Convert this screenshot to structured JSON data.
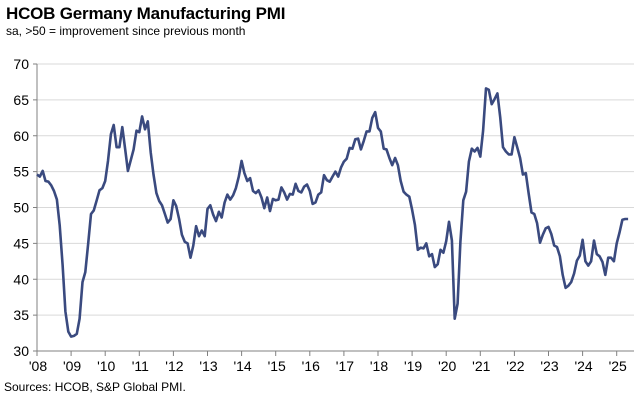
{
  "chart_data": {
    "type": "line",
    "title": "HCOB Germany Manufacturing PMI",
    "subtitle": "sa, >50 = improvement since previous month",
    "source": "Sources: HCOB, S&P Global PMI.",
    "xlabel": "",
    "ylabel": "",
    "ylim": [
      30,
      70
    ],
    "yticks": [
      "30",
      "35",
      "40",
      "45",
      "50",
      "55",
      "60",
      "65",
      "70"
    ],
    "xticks": [
      "'08",
      "'09",
      "'10",
      "'11",
      "'12",
      "'13",
      "'14",
      "'15",
      "'16",
      "'17",
      "'18",
      "'19",
      "'20",
      "'21",
      "'22",
      "'23",
      "'24",
      "'25"
    ],
    "x_start": "2008-01",
    "x_frequency": "monthly",
    "grid": "horizontal",
    "line_color": "#3a4a7f",
    "series": [
      {
        "values": [
          54.6,
          54.3,
          55.1,
          53.7,
          53.6,
          53.1,
          52.3,
          51.1,
          47.5,
          42.0,
          35.5,
          32.7,
          32.0,
          32.1,
          32.4,
          34.5,
          39.6,
          41.0,
          45.0,
          49.1,
          49.6,
          51.0,
          52.4,
          52.7,
          53.7,
          56.5,
          60.2,
          61.5,
          58.4,
          58.4,
          61.2,
          58.2,
          55.1,
          56.6,
          58.1,
          60.7,
          60.5,
          62.7,
          60.9,
          62.0,
          57.7,
          54.6,
          52.0,
          50.9,
          50.3,
          49.1,
          47.9,
          48.4,
          51.0,
          50.2,
          48.4,
          46.2,
          45.2,
          45.0,
          43.0,
          44.7,
          47.4,
          46.0,
          46.8,
          46.0,
          49.8,
          50.3,
          49.0,
          48.1,
          49.4,
          48.6,
          50.7,
          51.8,
          51.1,
          51.7,
          52.7,
          54.3,
          56.5,
          54.8,
          53.7,
          54.1,
          52.3,
          52.0,
          52.4,
          51.4,
          49.9,
          51.4,
          49.5,
          51.2,
          51.0,
          51.1,
          52.8,
          52.1,
          51.1,
          51.9,
          51.8,
          53.3,
          52.3,
          52.1,
          52.9,
          53.2,
          52.3,
          50.5,
          50.7,
          51.8,
          52.1,
          54.5,
          53.8,
          53.6,
          54.3,
          55.0,
          54.3,
          55.6,
          56.4,
          56.8,
          58.3,
          58.2,
          59.5,
          59.6,
          58.1,
          59.3,
          60.6,
          60.6,
          62.5,
          63.3,
          61.1,
          60.6,
          58.2,
          58.1,
          56.9,
          55.9,
          56.9,
          55.9,
          53.7,
          52.2,
          51.8,
          51.5,
          49.7,
          47.6,
          44.1,
          44.4,
          44.3,
          45.0,
          43.2,
          43.5,
          41.7,
          42.1,
          44.1,
          43.7,
          45.3,
          48.0,
          45.4,
          34.5,
          36.6,
          45.2,
          51.0,
          52.2,
          56.4,
          58.2,
          57.8,
          58.3,
          57.1,
          60.7,
          66.6,
          66.4,
          64.4,
          65.1,
          65.9,
          62.6,
          58.4,
          57.8,
          57.4,
          57.4,
          59.8,
          58.4,
          56.9,
          54.6,
          54.8,
          52.0,
          49.3,
          49.1,
          47.8,
          45.1,
          46.2,
          47.1,
          47.3,
          46.3,
          44.7,
          44.5,
          43.2,
          40.6,
          38.8,
          39.1,
          39.6,
          40.8,
          42.6,
          43.3,
          45.5,
          42.5,
          41.9,
          42.5,
          45.4,
          43.5,
          43.2,
          42.4,
          40.6,
          43.0,
          43.0,
          42.5,
          45.0,
          46.5,
          48.3,
          48.4,
          48.4
        ]
      }
    ]
  }
}
